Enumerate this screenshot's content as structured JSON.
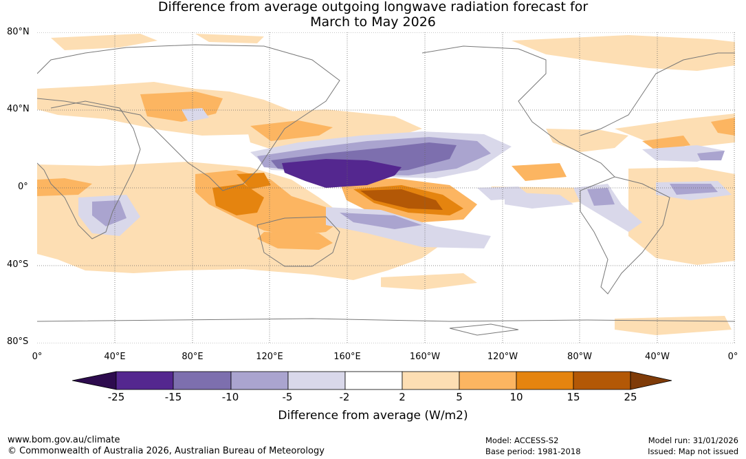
{
  "title": {
    "line1": "Difference from average outgoing longwave radiation forecast for",
    "line2": "March to May 2026"
  },
  "axes": {
    "lat_labels": [
      "80°N",
      "40°N",
      "0°",
      "40°S",
      "80°S"
    ],
    "lon_labels": [
      "0°",
      "40°E",
      "80°E",
      "120°E",
      "160°E",
      "160°W",
      "120°W",
      "80°W",
      "40°W",
      "0°"
    ]
  },
  "colorbar": {
    "ticks": [
      "-25",
      "-15",
      "-10",
      "-5",
      "-2",
      "2",
      "5",
      "10",
      "15",
      "25"
    ],
    "label": "Difference from average (W/m2)",
    "colors": {
      "lt_-25": "#2d0b4e",
      "-25_-15": "#54278f",
      "-15_-10": "#7d6fae",
      "-10_-5": "#aaa4cf",
      "-5_-2": "#d9d8ea",
      "-2_2": "#ffffff",
      "2_5": "#fddeb3",
      "5_10": "#fcb561",
      "10_15": "#e5840f",
      "15_25": "#b35806",
      "gt_25": "#7f3b08"
    }
  },
  "footer": {
    "url": "www.bom.gov.au/climate",
    "copyright": "© Commonwealth of Australia 2026, Australian Bureau of Meteorology",
    "model": "Model: ACCESS-S2",
    "base_period": "Base period: 1981-2018",
    "model_run": "Model run: 31/01/2026",
    "issued": "Issued: Map not issued"
  }
}
